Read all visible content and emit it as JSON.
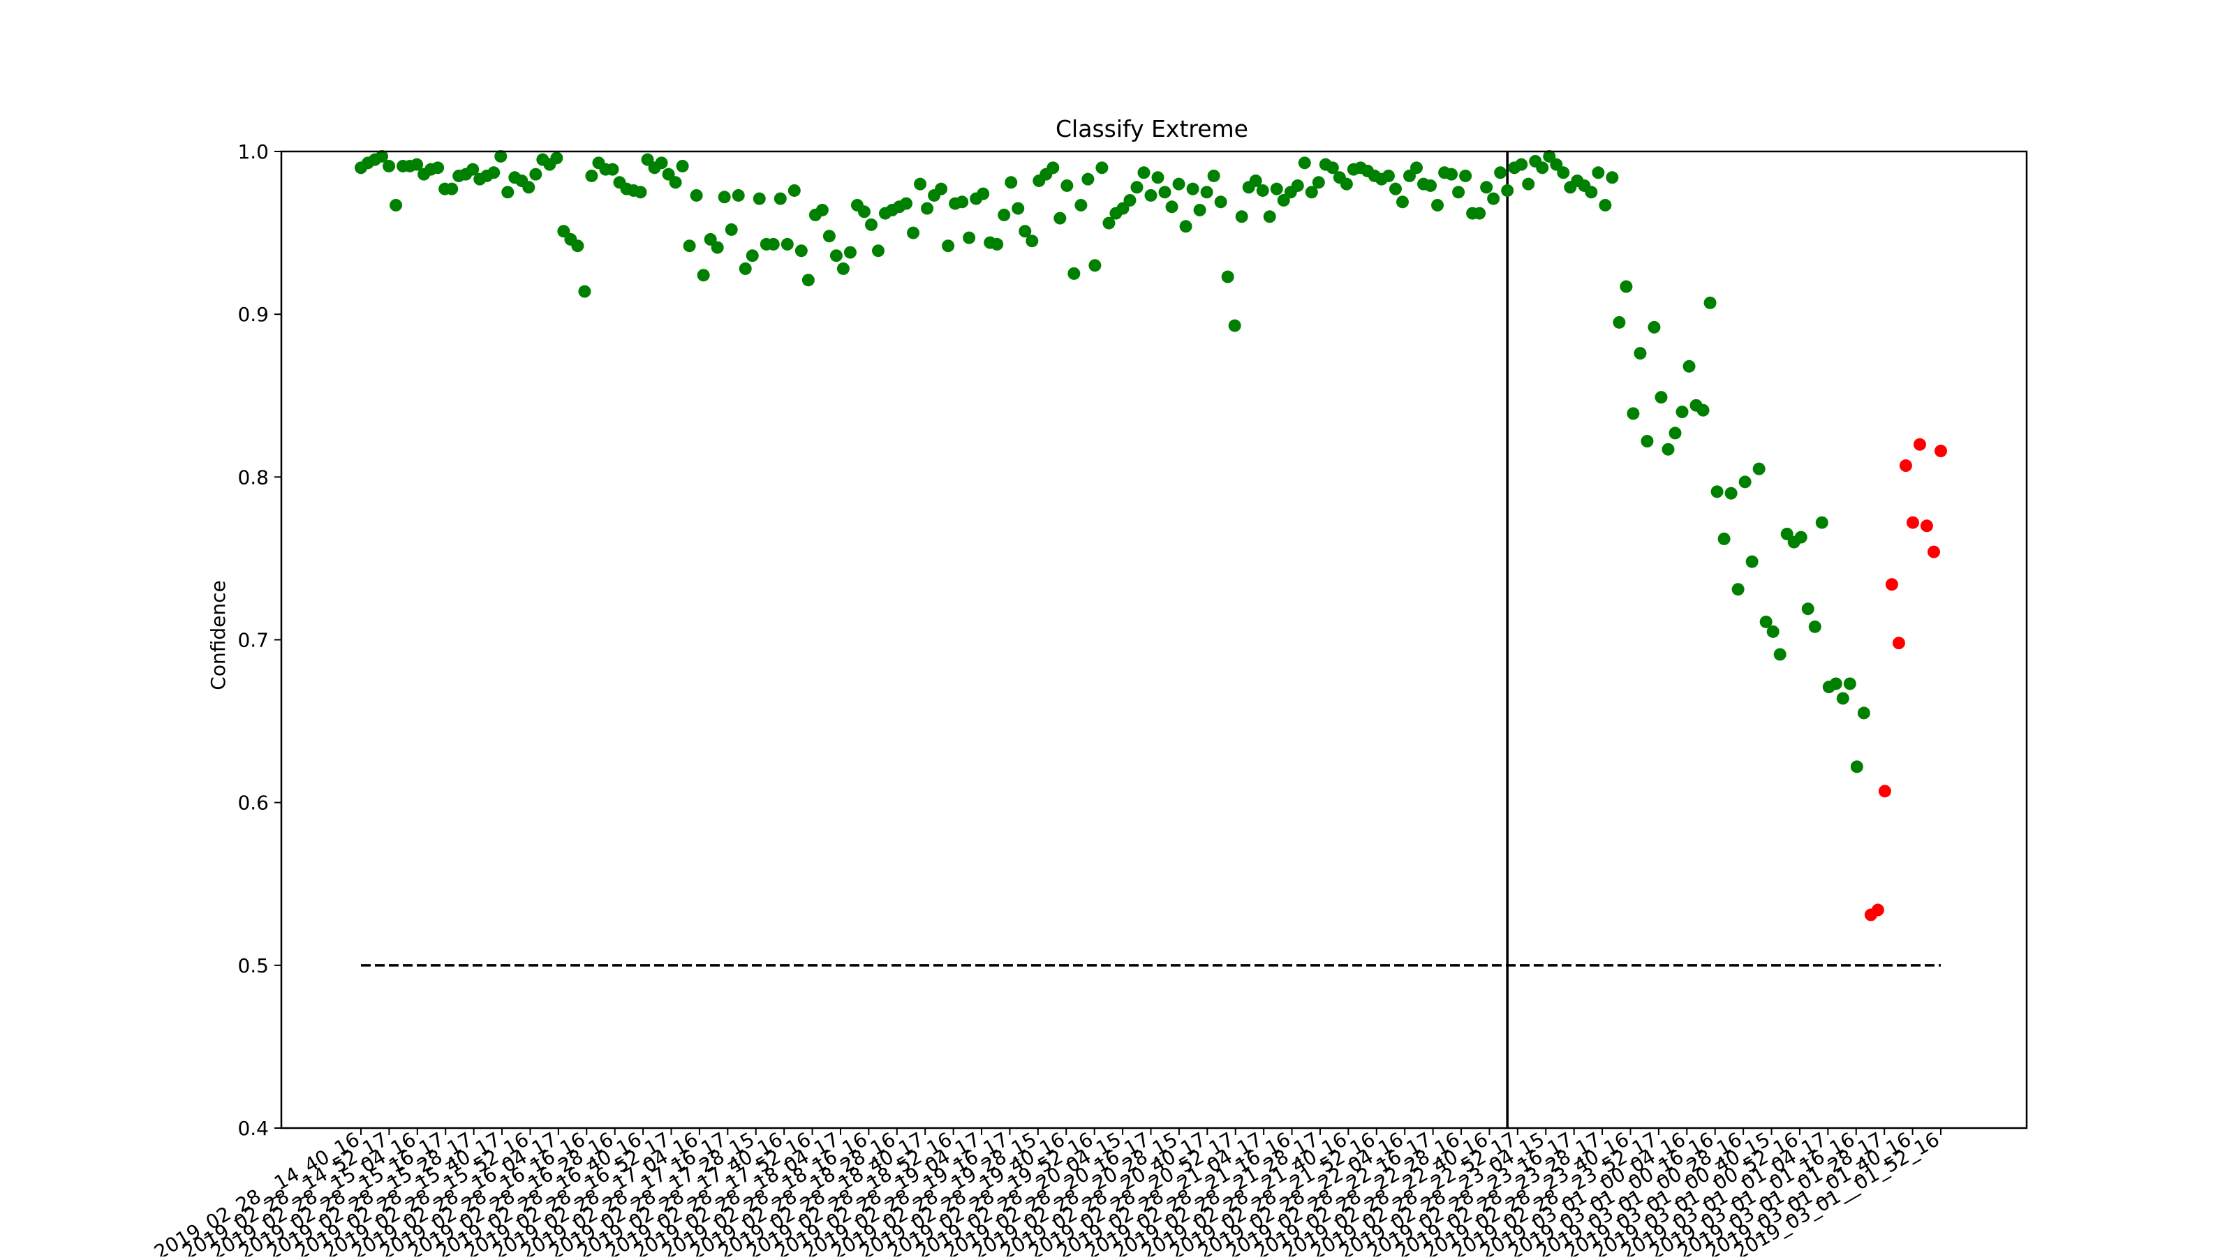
{
  "chart_data": {
    "type": "scatter",
    "title": "Classify Extreme",
    "xlabel": "",
    "ylabel": "Confidence",
    "ylim": [
      0.4,
      1.0
    ],
    "y_ticks": [
      "0.4",
      "0.5",
      "0.6",
      "0.7",
      "0.8",
      "0.9",
      "1.0"
    ],
    "grid": false,
    "threshold": 0.5,
    "split_index": 164,
    "colors": {
      "green": "#008000",
      "red": "#ff0000",
      "axis": "#000000"
    },
    "x_ticks": [
      "2019_02_28__14_40_16",
      "2019_02_28__14_52_17",
      "2019_02_28__15_04_16",
      "2019_02_28__15_16_17",
      "2019_02_28__15_28_17",
      "2019_02_28__15_40_17",
      "2019_02_28__15_52_16",
      "2019_02_28__16_04_17",
      "2019_02_28__16_16_16",
      "2019_02_28__16_28_16",
      "2019_02_28__16_40_16",
      "2019_02_28__16_52_17",
      "2019_02_28__17_04_16",
      "2019_02_28__17_16_17",
      "2019_02_28__17_28_15",
      "2019_02_28__17_40_16",
      "2019_02_28__17_52_16",
      "2019_02_28__18_04_17",
      "2019_02_28__18_16_16",
      "2019_02_28__18_28_16",
      "2019_02_28__18_40_17",
      "2019_02_28__18_52_16",
      "2019_02_28__19_04_17",
      "2019_02_28__19_16_17",
      "2019_02_28__19_28_15",
      "2019_02_28__19_40_16",
      "2019_02_28__19_52_16",
      "2019_02_28__20_04_15",
      "2019_02_28__20_16_17",
      "2019_02_28__20_28_15",
      "2019_02_28__20_40_17",
      "2019_02_28__20_52_17",
      "2019_02_28__21_04_17",
      "2019_02_28__21_16_16",
      "2019_02_28__21_28_17",
      "2019_02_28__21_40_16",
      "2019_02_28__21_52_16",
      "2019_02_28__22_04_16",
      "2019_02_28__22_16_17",
      "2019_02_28__22_28_16",
      "2019_02_28__22_40_16",
      "2019_02_28__22_52_17",
      "2019_02_28__23_04_15",
      "2019_02_28__23_16_17",
      "2019_02_28__23_28_17",
      "2019_02_28__23_40_16",
      "2019_02_28__23_52_17",
      "2019_03_01__00_04_16",
      "2019_03_01__00_16_16",
      "2019_03_01__00_28_16",
      "2019_03_01__00_40_15",
      "2019_03_01__00_52_16",
      "2019_03_01__01_04_17",
      "2019_03_01__01_16_16",
      "2019_03_01__01_28_17",
      "2019_03_01__01_40_16",
      "2019_03_01__01_52_16"
    ],
    "series": [
      {
        "color": "green",
        "values": [
          0.99,
          0.993,
          0.995,
          0.997,
          0.991,
          0.967,
          0.991,
          0.991,
          0.992,
          0.986,
          0.989,
          0.99,
          0.977,
          0.977,
          0.985,
          0.986,
          0.989,
          0.983,
          0.985,
          0.987,
          0.997,
          0.975,
          0.984,
          0.982,
          0.978,
          0.986,
          0.995,
          0.992,
          0.996,
          0.951,
          0.946,
          0.942,
          0.914,
          0.985,
          0.993,
          0.989,
          0.989,
          0.981,
          0.977,
          0.976,
          0.975,
          0.995,
          0.99,
          0.993,
          0.986,
          0.981,
          0.991,
          0.942,
          0.973,
          0.924,
          0.946,
          0.941,
          0.972,
          0.952,
          0.973,
          0.928,
          0.936,
          0.971,
          0.943,
          0.943,
          0.971,
          0.943,
          0.976,
          0.939,
          0.921,
          0.961,
          0.964,
          0.948,
          0.936,
          0.928,
          0.938,
          0.967,
          0.963,
          0.955,
          0.939,
          0.962,
          0.964,
          0.966,
          0.968,
          0.95,
          0.98,
          0.965,
          0.973,
          0.977,
          0.942,
          0.968,
          0.969,
          0.947,
          0.971,
          0.974,
          0.944,
          0.943,
          0.961,
          0.981,
          0.965,
          0.951,
          0.945,
          0.982,
          0.986,
          0.99,
          0.959,
          0.979,
          0.925,
          0.967,
          0.983,
          0.93,
          0.99,
          0.956,
          0.962,
          0.965,
          0.97,
          0.978,
          0.987,
          0.973,
          0.984,
          0.975,
          0.966,
          0.98,
          0.954,
          0.977,
          0.964,
          0.975,
          0.985,
          0.969,
          0.923,
          0.893,
          0.96,
          0.978,
          0.982,
          0.976,
          0.96,
          0.977,
          0.97,
          0.975,
          0.979,
          0.993,
          0.975,
          0.981,
          0.992,
          0.99,
          0.984,
          0.98,
          0.989,
          0.99,
          0.988,
          0.985,
          0.983,
          0.985,
          0.977,
          0.969,
          0.985,
          0.99,
          0.98,
          0.979,
          0.967,
          0.987,
          0.986,
          0.975,
          0.985,
          0.962,
          0.962,
          0.978,
          0.971,
          0.987,
          0.976,
          0.99,
          0.992,
          0.98,
          0.994,
          0.99,
          0.997,
          0.992,
          0.987,
          0.978,
          0.982,
          0.979,
          0.975,
          0.987,
          0.967,
          0.984,
          0.895,
          0.917,
          0.839,
          0.876,
          0.822,
          0.892,
          0.849,
          0.817,
          0.827,
          0.84,
          0.868,
          0.844,
          0.841,
          0.907,
          0.791,
          0.762,
          0.79,
          0.731,
          0.797,
          0.748,
          0.805,
          0.711,
          0.705,
          0.691,
          0.765,
          0.76,
          0.763,
          0.719,
          0.708,
          0.772,
          0.671,
          0.673,
          0.664,
          0.673,
          0.622,
          0.655
        ]
      },
      {
        "color": "red",
        "values": [
          0.531,
          0.534,
          0.607,
          0.734,
          0.698,
          0.807,
          0.772,
          0.82,
          0.77,
          0.754,
          0.816
        ]
      }
    ]
  }
}
